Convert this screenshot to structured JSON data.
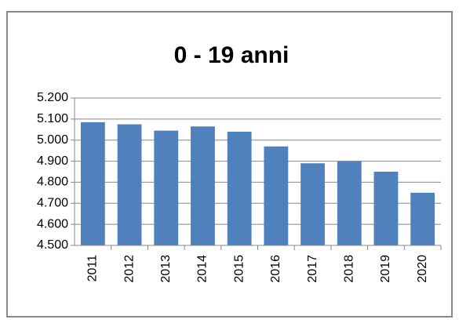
{
  "chart_data": {
    "type": "bar",
    "title": "0 - 19 anni",
    "categories": [
      "2011",
      "2012",
      "2013",
      "2014",
      "2015",
      "2016",
      "2017",
      "2018",
      "2019",
      "2020"
    ],
    "values": [
      5085,
      5075,
      5045,
      5065,
      5040,
      4970,
      4890,
      4900,
      4850,
      4750
    ],
    "color": "#4f81bd",
    "ylim": [
      4500,
      5200
    ],
    "yticks": [
      {
        "value": 4500,
        "label": "4.500"
      },
      {
        "value": 4600,
        "label": "4.600"
      },
      {
        "value": 4700,
        "label": "4.700"
      },
      {
        "value": 4800,
        "label": "4.800"
      },
      {
        "value": 4900,
        "label": "4.900"
      },
      {
        "value": 5000,
        "label": "5.000"
      },
      {
        "value": 5100,
        "label": "5.100"
      },
      {
        "value": 5200,
        "label": "5.200"
      }
    ],
    "grid": true
  }
}
